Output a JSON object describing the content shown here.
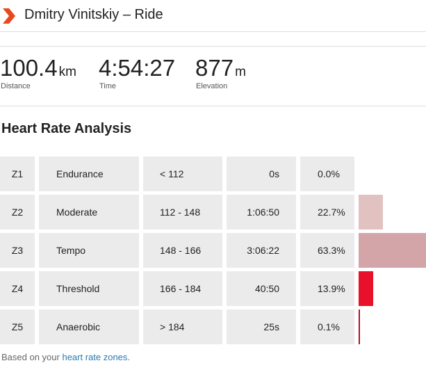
{
  "header": {
    "title": "Dmitry Vinitskiy – Ride"
  },
  "stats": [
    {
      "value": "100.4",
      "unit": "km",
      "label": "Distance"
    },
    {
      "value": "4:54:27",
      "label": "Time"
    },
    {
      "value": "877",
      "unit": "m",
      "label": "Elevation"
    }
  ],
  "section_title": "Heart Rate Analysis",
  "zones": [
    {
      "zone": "Z1",
      "name": "Endurance",
      "range": "< 112",
      "time": "0s",
      "percent": {
        "value": 0.0,
        "label": "0.0%"
      },
      "color": "#e6d0d0"
    },
    {
      "zone": "Z2",
      "name": "Moderate",
      "range": "112 - 148",
      "time": "1:06:50",
      "percent": {
        "value": 22.7,
        "label": "22.7%"
      },
      "color": "#e2c1c1"
    },
    {
      "zone": "Z3",
      "name": "Tempo",
      "range": "148 - 166",
      "time": "3:06:22",
      "percent": {
        "value": 63.3,
        "label": "63.3%"
      },
      "color": "#d4a5a8"
    },
    {
      "zone": "Z4",
      "name": "Threshold",
      "range": "166 - 184",
      "time": "40:50",
      "percent": {
        "value": 13.9,
        "label": "13.9%"
      },
      "color": "#e8102a"
    },
    {
      "zone": "Z5",
      "name": "Anaerobic",
      "range": "> 184",
      "time": "25s",
      "percent": {
        "value": 0.1,
        "label": "0.1%"
      },
      "color": "#b0102a"
    }
  ],
  "footer": {
    "text": "Based on your",
    "link": "heart rate zones",
    "end": "."
  }
}
